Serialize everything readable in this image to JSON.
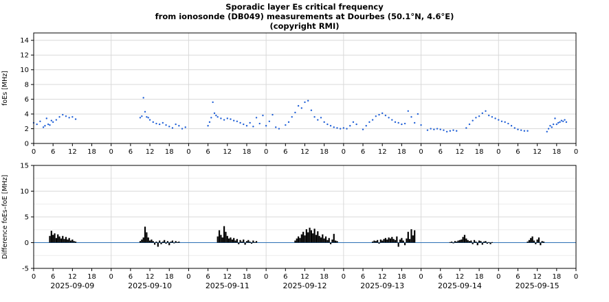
{
  "title_lines": [
    "Sporadic layer Es critical frequency",
    "from ionosonde (DB049) measurements at Dourbes (50.1°N, 4.6°E)",
    "(copyright RMI)"
  ],
  "colors": {
    "foes": "#1f5fd6",
    "diff": "#000000",
    "zero_line": "#2a6fb5",
    "grid": "#d9d9d9"
  },
  "hour_tick_labels": [
    "0",
    "6",
    "12",
    "18"
  ],
  "chart_data": [
    {
      "type": "scatter",
      "ylabel": "foEs [MHz]",
      "ylim": [
        0,
        15
      ],
      "y_ticks": [
        0,
        2,
        4,
        6,
        8,
        10,
        12,
        14
      ],
      "x_unit": "hours since 2025-09-09 00:00 UT",
      "xlim": [
        0,
        168
      ],
      "grid": true,
      "segments": [
        {
          "x": [
            0,
            1,
            2,
            3,
            3.5,
            4,
            4.5,
            5,
            5.5,
            6,
            7,
            8,
            9,
            10,
            11,
            12,
            13
          ],
          "y": [
            2.8,
            2.6,
            3.0,
            2.2,
            2.4,
            3.4,
            2.6,
            2.5,
            3.1,
            2.9,
            3.2,
            3.6,
            3.9,
            3.7,
            3.5,
            3.6,
            3.3
          ]
        },
        {
          "x": [
            33,
            33.5,
            34,
            34.5,
            35,
            35.5,
            36,
            37,
            38,
            39,
            40,
            41,
            42,
            43,
            44,
            45,
            46,
            47
          ],
          "y": [
            3.5,
            3.7,
            6.2,
            4.3,
            3.6,
            3.5,
            3.2,
            2.9,
            2.7,
            2.6,
            2.8,
            2.5,
            2.3,
            2.1,
            2.6,
            2.4,
            2.0,
            2.2
          ]
        },
        {
          "x": [
            54,
            54.5,
            55,
            55.5,
            56,
            56.5,
            57,
            58,
            59,
            60,
            61,
            62,
            63,
            64,
            65,
            66,
            67,
            68,
            69,
            70,
            71,
            72,
            73,
            74,
            75,
            76
          ],
          "y": [
            2.4,
            2.9,
            3.5,
            5.6,
            4.1,
            3.8,
            3.6,
            3.4,
            3.2,
            3.4,
            3.3,
            3.1,
            3.0,
            2.8,
            2.6,
            2.4,
            2.8,
            2.3,
            3.5,
            2.7,
            3.8,
            2.4,
            3.0,
            3.9,
            2.2,
            2.0
          ]
        },
        {
          "x": [
            78,
            79,
            80,
            81,
            82,
            83,
            84,
            85,
            86,
            87,
            88,
            89,
            90,
            91,
            92,
            93,
            94,
            95,
            96,
            97,
            98,
            99,
            100
          ],
          "y": [
            2.5,
            2.9,
            3.6,
            4.2,
            5.1,
            4.8,
            5.6,
            5.8,
            4.5,
            3.6,
            3.2,
            3.5,
            2.9,
            2.6,
            2.4,
            2.2,
            2.1,
            2.0,
            2.1,
            2.0,
            2.4,
            2.9,
            2.6
          ]
        },
        {
          "x": [
            102,
            103,
            104,
            105,
            106,
            107,
            108,
            109,
            110,
            111,
            112,
            113,
            114,
            115,
            116,
            117,
            118,
            119,
            120
          ],
          "y": [
            1.9,
            2.4,
            2.9,
            3.2,
            3.7,
            3.9,
            4.1,
            3.8,
            3.5,
            3.2,
            2.9,
            2.8,
            2.6,
            2.7,
            4.4,
            3.6,
            2.8,
            4.0,
            2.5
          ]
        },
        {
          "x": [
            122,
            123,
            124,
            125,
            126,
            127,
            128,
            129,
            130,
            131
          ],
          "y": [
            1.8,
            2.0,
            1.9,
            2.0,
            1.9,
            1.8,
            1.6,
            1.7,
            1.8,
            1.7
          ]
        },
        {
          "x": [
            134,
            135,
            136,
            137,
            138,
            139,
            140,
            141,
            142,
            143,
            144,
            145,
            146,
            147,
            148,
            149,
            150,
            151,
            152,
            153
          ],
          "y": [
            2.1,
            2.6,
            3.1,
            3.5,
            3.7,
            4.1,
            4.4,
            3.8,
            3.6,
            3.4,
            3.2,
            3.0,
            2.9,
            2.7,
            2.4,
            2.1,
            1.9,
            1.8,
            1.7,
            1.7
          ]
        },
        {
          "x": [
            159,
            159.5,
            160,
            160.5,
            161,
            161.5,
            162,
            162.5,
            163,
            163.5,
            164,
            164.5,
            165
          ],
          "y": [
            1.6,
            2.0,
            2.4,
            2.2,
            2.6,
            3.4,
            2.6,
            2.8,
            2.9,
            3.1,
            3.0,
            3.2,
            2.9
          ]
        }
      ]
    },
    {
      "type": "bar",
      "ylabel": "Difference foEs–foE [MHz]",
      "ylim": [
        -5,
        15
      ],
      "y_ticks": [
        -5,
        0,
        5,
        10,
        15
      ],
      "x_unit": "hours since 2025-09-09 00:00 UT",
      "xlim": [
        0,
        168
      ],
      "grid": true,
      "zero_line": 0,
      "dates": [
        "2025-09-09",
        "2025-09-10",
        "2025-09-11",
        "2025-09-12",
        "2025-09-13",
        "2025-09-14",
        "2025-09-15"
      ],
      "segments": [
        {
          "x": [
            5,
            5.5,
            6,
            6.5,
            7,
            7.5,
            8,
            8.5,
            9,
            9.5,
            10,
            10.5,
            11,
            11.5,
            12,
            12.5,
            13
          ],
          "y": [
            1.3,
            2.3,
            1.5,
            1.8,
            0.9,
            1.6,
            1.2,
            0.8,
            1.3,
            0.7,
            1.1,
            0.6,
            0.9,
            0.4,
            0.6,
            0.3,
            0.2
          ]
        },
        {
          "x": [
            33,
            33.5,
            34,
            34.5,
            35,
            35.5,
            36,
            36.5,
            37,
            37.5,
            38,
            38.5,
            39,
            39.5,
            40,
            40.5,
            41,
            41.5,
            42,
            42.5,
            43,
            43.5,
            44,
            44.5,
            45
          ],
          "y": [
            0.3,
            0.6,
            1.0,
            3.1,
            2.0,
            1.0,
            0.4,
            0.6,
            0.3,
            -0.4,
            0.2,
            -0.8,
            0.4,
            -0.3,
            0.2,
            0.5,
            -0.2,
            0.3,
            -0.5,
            0.2,
            0.4,
            -0.1,
            0.3,
            0.1,
            0.2
          ]
        },
        {
          "x": [
            57,
            57.5,
            58,
            58.5,
            59,
            59.5,
            60,
            60.5,
            61,
            61.5,
            62,
            62.5,
            63,
            63.5,
            64,
            64.5,
            65,
            65.5,
            66,
            66.5,
            67,
            67.5,
            68,
            68.5,
            69
          ],
          "y": [
            1.2,
            2.4,
            1.5,
            1.0,
            3.2,
            2.1,
            1.3,
            0.8,
            1.0,
            0.6,
            0.9,
            0.4,
            0.7,
            -0.3,
            0.5,
            0.2,
            0.6,
            -0.4,
            0.3,
            0.5,
            0.2,
            -0.2,
            0.4,
            0.1,
            0.3
          ]
        },
        {
          "x": [
            81,
            81.5,
            82,
            82.5,
            83,
            83.5,
            84,
            84.5,
            85,
            85.5,
            86,
            86.5,
            87,
            87.5,
            88,
            88.5,
            89,
            89.5,
            90,
            90.5,
            91,
            91.5,
            92,
            92.5,
            93,
            93.5,
            94
          ],
          "y": [
            0.4,
            0.8,
            1.2,
            0.9,
            1.6,
            2.1,
            1.4,
            2.6,
            2.0,
            2.9,
            2.4,
            1.8,
            2.7,
            1.5,
            2.2,
            1.3,
            1.0,
            1.6,
            0.8,
            1.2,
            0.5,
            0.9,
            -0.3,
            0.6,
            1.7,
            0.4,
            0.3
          ]
        },
        {
          "x": [
            105,
            105.5,
            106,
            106.5,
            107,
            107.5,
            108,
            108.5,
            109,
            109.5,
            110,
            110.5,
            111,
            111.5,
            112,
            112.5,
            113,
            113.5,
            114,
            114.5,
            115,
            115.5,
            116,
            116.5,
            117,
            117.5,
            118
          ],
          "y": [
            0.2,
            0.4,
            0.3,
            0.5,
            -0.2,
            0.6,
            0.4,
            0.7,
            0.9,
            0.6,
            1.0,
            0.8,
            1.1,
            0.7,
            0.5,
            1.2,
            -0.8,
            0.6,
            0.9,
            0.4,
            -0.5,
            0.8,
            2.1,
            0.7,
            2.6,
            1.4,
            2.4
          ]
        },
        {
          "x": [
            129,
            129.5,
            130,
            130.5,
            131,
            131.5,
            132,
            132.5,
            133,
            133.5,
            134,
            134.5,
            135,
            135.5,
            136,
            136.5,
            137,
            137.5,
            138,
            138.5,
            139,
            139.5,
            140,
            140.5,
            141,
            141.5,
            142
          ],
          "y": [
            0.1,
            0.2,
            -0.1,
            0.3,
            0.2,
            0.4,
            0.5,
            0.6,
            1.1,
            1.5,
            0.8,
            0.5,
            0.3,
            0.4,
            -0.3,
            0.5,
            0.2,
            -0.5,
            0.4,
            0.3,
            -0.4,
            0.2,
            0.3,
            -0.2,
            0.1,
            -0.3,
            0.1
          ]
        },
        {
          "x": [
            153,
            153.5,
            154,
            154.5,
            155,
            155.5,
            156,
            156.5,
            157,
            157.5,
            158
          ],
          "y": [
            0.2,
            0.5,
            0.9,
            1.2,
            0.4,
            -0.3,
            0.6,
            1.0,
            -0.5,
            0.3,
            0.2
          ]
        }
      ]
    }
  ]
}
